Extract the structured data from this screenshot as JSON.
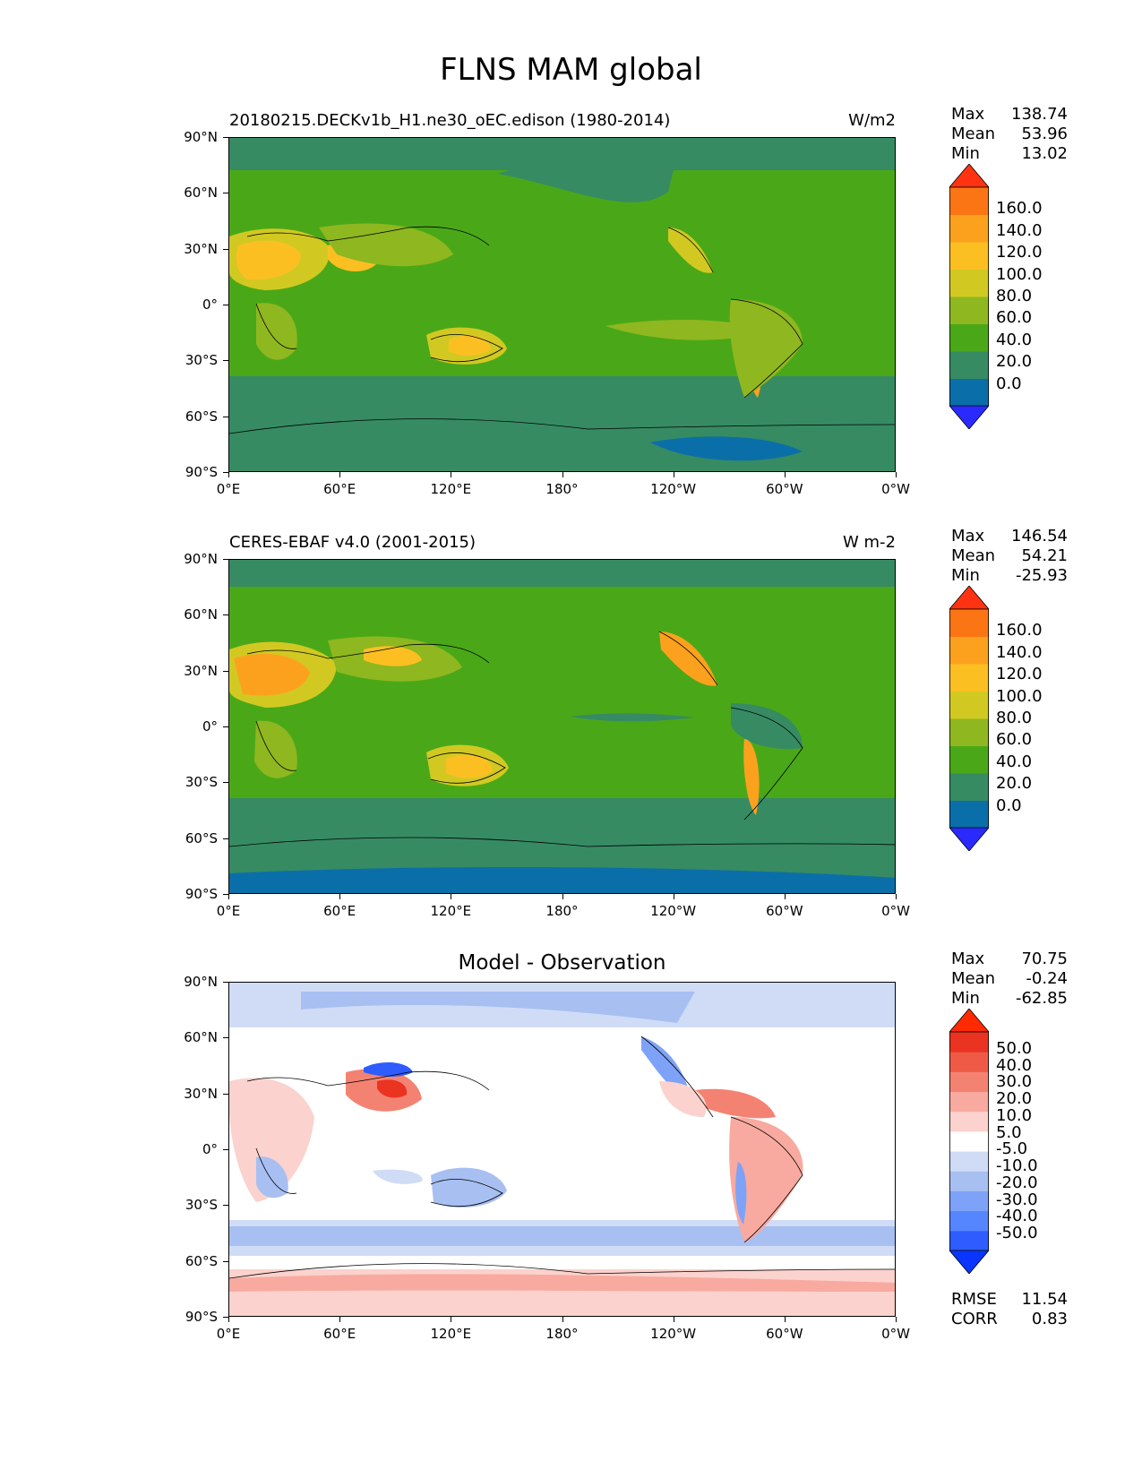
{
  "title": "FLNS MAM global",
  "axes": {
    "y_ticks": [
      "90°N",
      "60°N",
      "30°N",
      "0°",
      "30°S",
      "60°S",
      "90°S"
    ],
    "x_ticks": [
      "0°E",
      "60°E",
      "120°E",
      "180°",
      "120°W",
      "60°W",
      "0°W"
    ]
  },
  "panels": [
    {
      "subtitle": "20180215.DECKv1b_H1.ne30_oEC.edison (1980-2014)",
      "center_title": "",
      "units": "W/m2",
      "stats": [
        {
          "label": "Max",
          "value": "138.74"
        },
        {
          "label": "Mean",
          "value": "53.96"
        },
        {
          "label": "Min",
          "value": "13.02"
        }
      ],
      "colorbar_labels": [
        "160.0",
        "140.0",
        "120.0",
        "100.0",
        "80.0",
        "60.0",
        "40.0",
        "20.0",
        "0.0"
      ],
      "colorbar_colors": [
        "#2a2aff",
        "#0a6fa8",
        "#368b63",
        "#4aa818",
        "#8fb71f",
        "#d1c922",
        "#fcbf22",
        "#fca11d",
        "#fc7514",
        "#ff3311"
      ],
      "footer_stats": []
    },
    {
      "subtitle": "CERES-EBAF v4.0 (2001-2015)",
      "center_title": "",
      "units": "W m-2",
      "stats": [
        {
          "label": "Max",
          "value": "146.54"
        },
        {
          "label": "Mean",
          "value": "54.21"
        },
        {
          "label": "Min",
          "value": "-25.93"
        }
      ],
      "colorbar_labels": [
        "160.0",
        "140.0",
        "120.0",
        "100.0",
        "80.0",
        "60.0",
        "40.0",
        "20.0",
        "0.0"
      ],
      "colorbar_colors": [
        "#2a2aff",
        "#0a6fa8",
        "#368b63",
        "#4aa818",
        "#8fb71f",
        "#d1c922",
        "#fcbf22",
        "#fca11d",
        "#fc7514",
        "#ff3311"
      ],
      "footer_stats": []
    },
    {
      "subtitle": "",
      "center_title": "Model - Observation",
      "units": "",
      "stats": [
        {
          "label": "Max",
          "value": "70.75"
        },
        {
          "label": "Mean",
          "value": "-0.24"
        },
        {
          "label": "Min",
          "value": "-62.85"
        }
      ],
      "colorbar_labels": [
        "50.0",
        "40.0",
        "30.0",
        "20.0",
        "10.0",
        "5.0",
        "-5.0",
        "-10.0",
        "-20.0",
        "-30.0",
        "-40.0",
        "-50.0"
      ],
      "colorbar_colors": [
        "#0a35ff",
        "#2e5cff",
        "#5585ff",
        "#7ea2f7",
        "#a8bff2",
        "#d0dcf6",
        "#ffffff",
        "#fbd2cd",
        "#f8aaa0",
        "#f48272",
        "#ef5a47",
        "#eb3322",
        "#ff2a00"
      ],
      "footer_stats": [
        {
          "label": "RMSE",
          "value": "11.54"
        },
        {
          "label": "CORR",
          "value": "0.83"
        }
      ]
    }
  ]
}
